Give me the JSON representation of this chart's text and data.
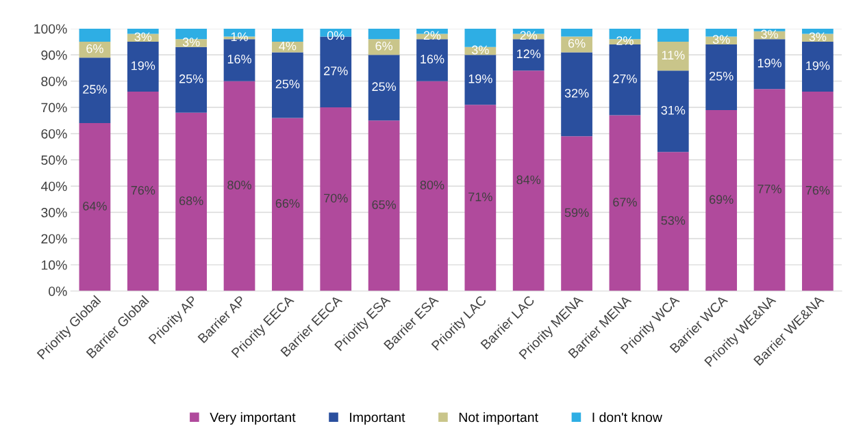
{
  "chart_data": {
    "type": "bar",
    "stacked": true,
    "categories": [
      "Priority Global",
      "Barrier Global",
      "Priority AP",
      "Barrier AP",
      "Priority EECA",
      "Barrier EECA",
      "Priority ESA",
      "Barrier ESA",
      "Priority LAC",
      "Barrier LAC",
      "Priority MENA",
      "Barrier MENA",
      "Priority WCA",
      "Barrier WCA",
      "Priority WE&NA",
      "Barrier WE&NA"
    ],
    "series": [
      {
        "name": "Very important",
        "color": "#b04a9c",
        "values": [
          64,
          76,
          68,
          80,
          66,
          70,
          65,
          80,
          71,
          84,
          59,
          67,
          53,
          69,
          77,
          76
        ],
        "value_labels": [
          "64%",
          "76%",
          "68%",
          "80%",
          "66%",
          "70%",
          "65%",
          "80%",
          "71%",
          "84%",
          "59%",
          "67%",
          "53%",
          "69%",
          "77%",
          "76%"
        ]
      },
      {
        "name": "Important",
        "color": "#2a4f9e",
        "values": [
          25,
          19,
          25,
          16,
          25,
          27,
          25,
          16,
          19,
          12,
          32,
          27,
          31,
          25,
          19,
          19
        ],
        "value_labels": [
          "25%",
          "19%",
          "25%",
          "16%",
          "25%",
          "27%",
          "25%",
          "16%",
          "19%",
          "12%",
          "32%",
          "27%",
          "31%",
          "25%",
          "19%",
          "19%"
        ]
      },
      {
        "name": "Not important",
        "color": "#c9c58a",
        "values": [
          6,
          3,
          3,
          1,
          4,
          0,
          6,
          2,
          3,
          2,
          6,
          2,
          11,
          3,
          3,
          3
        ],
        "value_labels": [
          "6%",
          "3%",
          "3%",
          "1%",
          "4%",
          "0%",
          "6%",
          "2%",
          "3%",
          "2%",
          "6%",
          "2%",
          "11%",
          "3%",
          "3%",
          "3%"
        ]
      },
      {
        "name": "I don't know",
        "color": "#2eaee4",
        "values": [
          5,
          2,
          4,
          3,
          5,
          3,
          4,
          2,
          7,
          2,
          3,
          4,
          5,
          3,
          1,
          2
        ]
      }
    ],
    "ylim": [
      0,
      100
    ],
    "yticks": [
      {
        "value": 0,
        "label": "0%"
      },
      {
        "value": 10,
        "label": "10%"
      },
      {
        "value": 20,
        "label": "20%"
      },
      {
        "value": 30,
        "label": "30%"
      },
      {
        "value": 40,
        "label": "40%"
      },
      {
        "value": 50,
        "label": "50%"
      },
      {
        "value": 60,
        "label": "60%"
      },
      {
        "value": 70,
        "label": "70%"
      },
      {
        "value": 80,
        "label": "80%"
      },
      {
        "value": 90,
        "label": "90%"
      },
      {
        "value": 100,
        "label": "100%"
      }
    ],
    "grid": "y",
    "legend": "bottom"
  }
}
